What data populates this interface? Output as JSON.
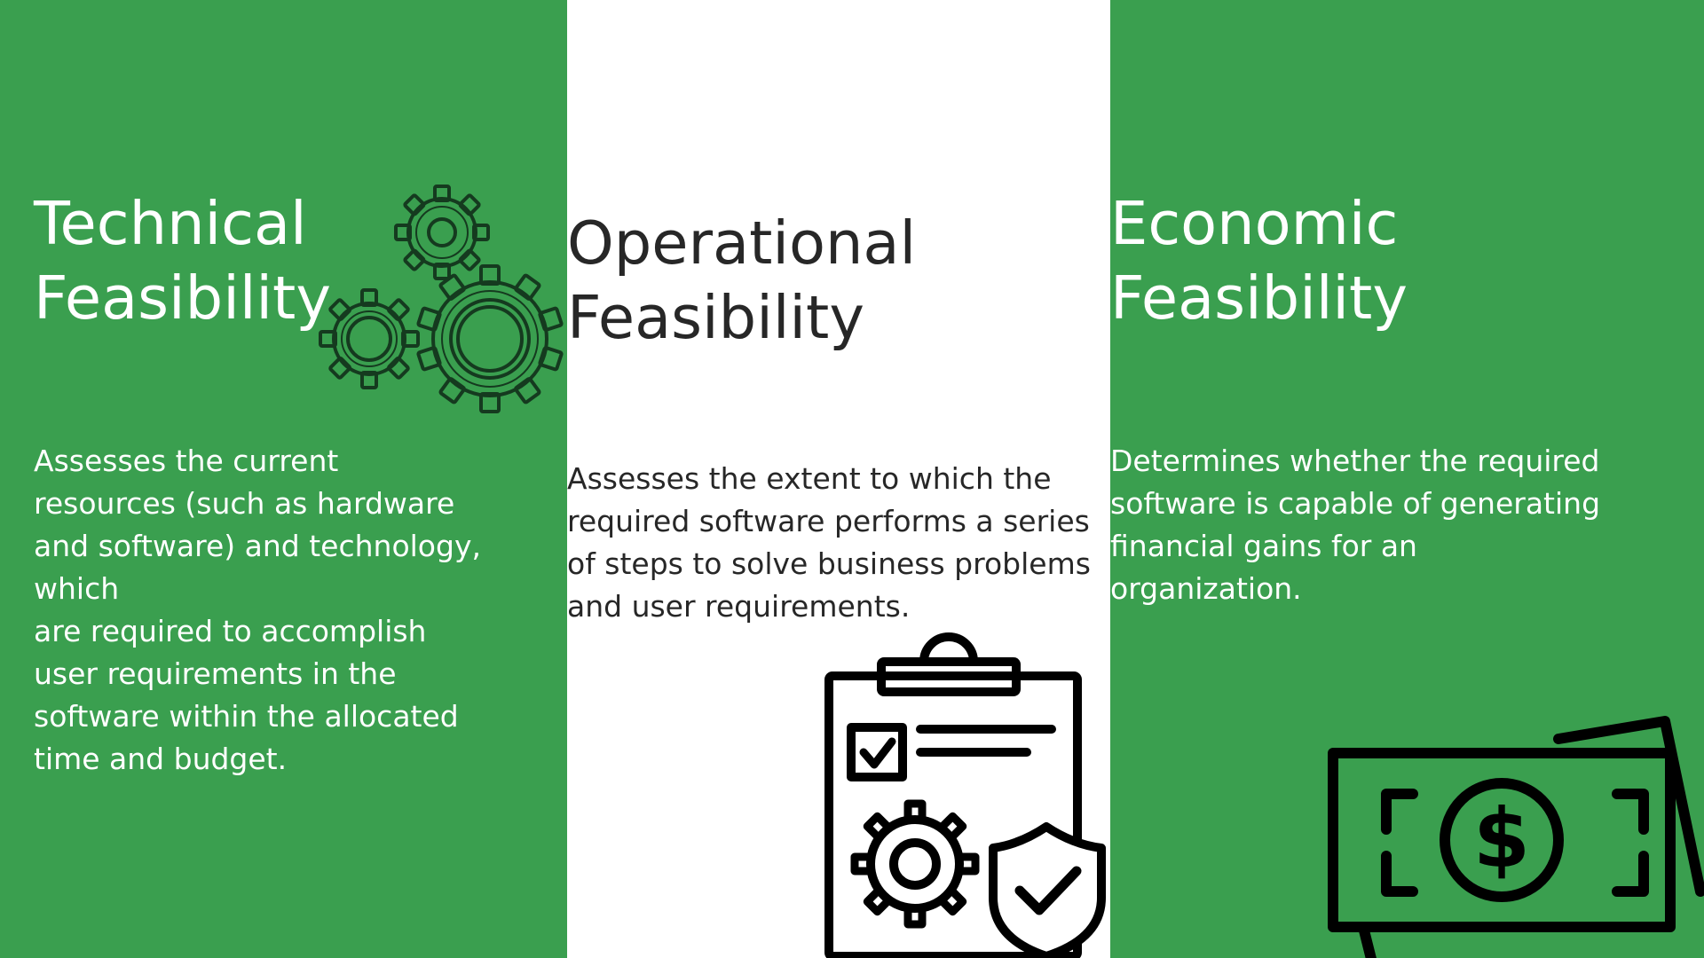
{
  "theme": {
    "green": "#3a9f4f",
    "white": "#ffffff",
    "text_dark": "#272727",
    "icon_dark": "#153a1f"
  },
  "technical": {
    "title": "Technical\nFeasibility",
    "description": " Assesses the current\nresources (such as hardware\nand software) and technology,\nwhich\nare required to accomplish\nuser requirements in the\nsoftware within the allocated\ntime and budget.",
    "icon": "gears-icon"
  },
  "operational": {
    "title": "Operational\nFeasibility",
    "description": "Assesses the extent to which the\nrequired software performs a series\nof steps to solve business problems\nand user requirements.",
    "icon": "clipboard-checklist-gear-shield-icon"
  },
  "economic": {
    "title": "Economic\nFeasibility",
    "description": "Determines whether the required\nsoftware is capable of generating\nfinancial gains for an\norganization.",
    "icon": "money-bill-dollar-icon"
  }
}
